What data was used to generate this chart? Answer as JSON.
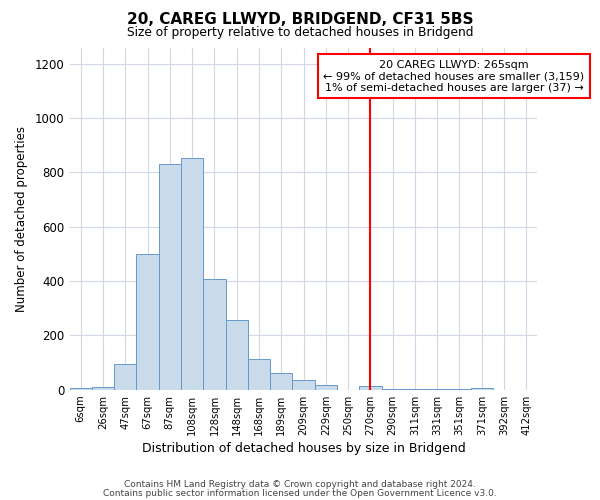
{
  "title": "20, CAREG LLWYD, BRIDGEND, CF31 5BS",
  "subtitle": "Size of property relative to detached houses in Bridgend",
  "xlabel": "Distribution of detached houses by size in Bridgend",
  "ylabel": "Number of detached properties",
  "footer_lines": [
    "Contains HM Land Registry data © Crown copyright and database right 2024.",
    "Contains public sector information licensed under the Open Government Licence v3.0."
  ],
  "bin_labels": [
    "6sqm",
    "26sqm",
    "47sqm",
    "67sqm",
    "87sqm",
    "108sqm",
    "128sqm",
    "148sqm",
    "168sqm",
    "189sqm",
    "209sqm",
    "229sqm",
    "250sqm",
    "270sqm",
    "290sqm",
    "311sqm",
    "331sqm",
    "351sqm",
    "371sqm",
    "392sqm",
    "412sqm"
  ],
  "bar_heights": [
    8,
    10,
    95,
    500,
    833,
    855,
    408,
    258,
    113,
    63,
    35,
    18,
    0,
    13,
    3,
    3,
    3,
    3,
    8,
    0,
    0
  ],
  "bar_color": "#c9daea",
  "bar_edge_color": "#6699cc",
  "ylim": [
    0,
    1260
  ],
  "yticks": [
    0,
    200,
    400,
    600,
    800,
    1000,
    1200
  ],
  "vline_x_index": 13,
  "vline_color": "red",
  "annotation_line1": "20 CAREG LLWYD: 265sqm",
  "annotation_line2": "← 99% of detached houses are smaller (3,159)",
  "annotation_line3": "1% of semi-detached houses are larger (37) →",
  "annotation_box_color": "red",
  "background_color": "#ffffff",
  "grid_color": "#d0d8e8"
}
